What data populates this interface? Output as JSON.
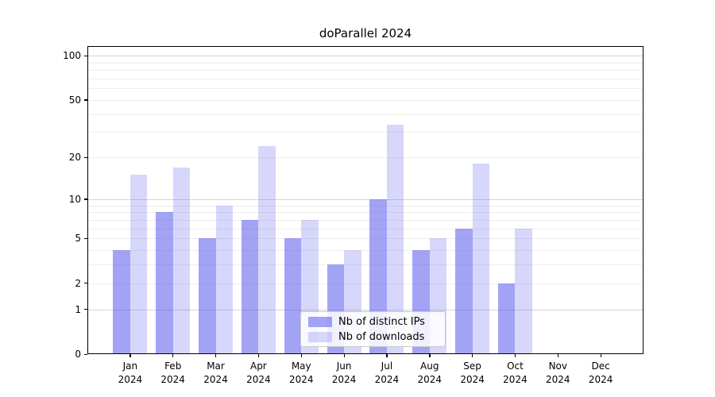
{
  "figure": {
    "title": "doParallel 2024"
  },
  "chart_data": {
    "type": "bar",
    "title": "doParallel 2024",
    "categories": [
      "Jan",
      "Feb",
      "Mar",
      "Apr",
      "May",
      "Jun",
      "Jul",
      "Aug",
      "Sep",
      "Oct",
      "Nov",
      "Dec"
    ],
    "x_year_label": "2024",
    "series": [
      {
        "name": "Nb of distinct IPs",
        "color": "rgba(102,102,238,0.60)",
        "values": [
          4,
          8,
          5,
          7,
          5,
          3,
          10,
          4,
          6,
          2,
          0,
          0
        ]
      },
      {
        "name": "Nb of downloads",
        "color": "rgba(102,102,238,0.26)",
        "values": [
          15,
          17,
          9,
          24,
          7,
          4,
          34,
          5,
          18,
          6,
          0,
          0
        ]
      }
    ],
    "y_axis": {
      "scale": "log1p",
      "tick_labels": [
        0,
        1,
        2,
        5,
        10,
        20,
        50,
        100
      ],
      "major_gridlines": [
        1,
        10,
        100
      ],
      "minor_gridlines": [
        2,
        3,
        4,
        5,
        6,
        7,
        8,
        9,
        20,
        30,
        40,
        50,
        60,
        70,
        80,
        90
      ],
      "ylim_top_value": 115
    },
    "legend": {
      "entries": [
        "Nb of distinct IPs",
        "Nb of downloads"
      ],
      "location": "lower center inside plot"
    },
    "grid": true,
    "colors": {
      "bar_base": "#6666ee",
      "major_grid": "#d4d4d4",
      "minor_grid": "#ededed",
      "spine": "#000000"
    }
  }
}
